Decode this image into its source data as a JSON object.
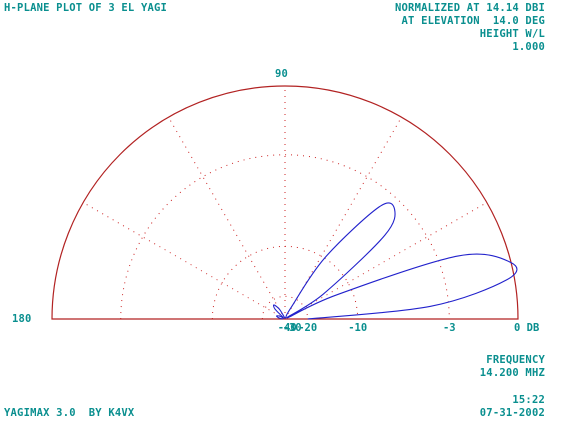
{
  "header": {
    "title": "H-PLANE PLOT OF 3 EL YAGI",
    "normalized": "NORMALIZED AT 14.14 DBI",
    "elevation": "AT ELEVATION  14.0 DEG",
    "height_label": "HEIGHT W/L",
    "height_value": "1.000"
  },
  "footer": {
    "frequency_label": "FREQUENCY",
    "frequency_value": "14.200 MHZ",
    "program": "YAGIMAX 3.0  BY K4VX",
    "time": "15:22",
    "date": "07-31-2002"
  },
  "chart_data": {
    "type": "polar",
    "title": "H-PLANE PLOT OF 3 EL YAGI",
    "angle_labels": {
      "top": "90",
      "left": "180"
    },
    "radial_tick_labels": [
      "-40",
      "-30",
      "-20",
      "-10",
      "-3",
      "0 DB"
    ],
    "radial_ticks_db": [
      -40,
      -30,
      -20,
      -10,
      -3,
      0
    ],
    "angle_range_deg": [
      0,
      180
    ],
    "grid": true,
    "grid_spokes_deg": [
      30,
      60,
      90,
      120,
      150
    ],
    "series": [
      {
        "points": [
          {
            "angle_deg": 0,
            "gain_db": -20
          },
          {
            "angle_deg": 5,
            "gain_db": -4
          },
          {
            "angle_deg": 10,
            "gain_db": -0.3
          },
          {
            "angle_deg": 14,
            "gain_db": 0
          },
          {
            "angle_deg": 20,
            "gain_db": -2
          },
          {
            "angle_deg": 25,
            "gain_db": -12
          },
          {
            "angle_deg": 30,
            "gain_db": -40
          },
          {
            "angle_deg": 33,
            "gain_db": -14
          },
          {
            "angle_deg": 40,
            "gain_db": -5
          },
          {
            "angle_deg": 45,
            "gain_db": -3.5
          },
          {
            "angle_deg": 50,
            "gain_db": -4
          },
          {
            "angle_deg": 57,
            "gain_db": -10
          },
          {
            "angle_deg": 62,
            "gain_db": -25
          },
          {
            "angle_deg": 66,
            "gain_db": -40
          },
          {
            "angle_deg": 90,
            "gain_db": -50
          },
          {
            "angle_deg": 110,
            "gain_db": -40
          },
          {
            "angle_deg": 120,
            "gain_db": -26
          },
          {
            "angle_deg": 128,
            "gain_db": -22
          },
          {
            "angle_deg": 135,
            "gain_db": -24
          },
          {
            "angle_deg": 143,
            "gain_db": -40
          },
          {
            "angle_deg": 150,
            "gain_db": -33
          },
          {
            "angle_deg": 160,
            "gain_db": -28
          },
          {
            "angle_deg": 170,
            "gain_db": -31
          },
          {
            "angle_deg": 180,
            "gain_db": -40
          }
        ]
      }
    ]
  },
  "colors": {
    "text": "#0a8f8f",
    "outline": "#b22222",
    "grid": "#cc2222",
    "trace": "#2222cc"
  }
}
